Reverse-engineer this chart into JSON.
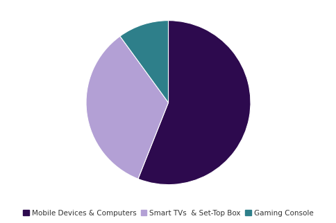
{
  "labels": [
    "Mobile Devices & Computers",
    "Smart TVs  & Set-Top Box",
    "Gaming Console"
  ],
  "values": [
    56,
    34,
    10
  ],
  "colors": [
    "#2d0a4e",
    "#b3a0d5",
    "#2e7f8a"
  ],
  "legend_labels": [
    "Mobile Devices & Computers",
    "Smart TVs  & Set-Top Box",
    "Gaming Console"
  ],
  "startangle": 90,
  "background_color": "#ffffff",
  "legend_fontsize": 7.5
}
